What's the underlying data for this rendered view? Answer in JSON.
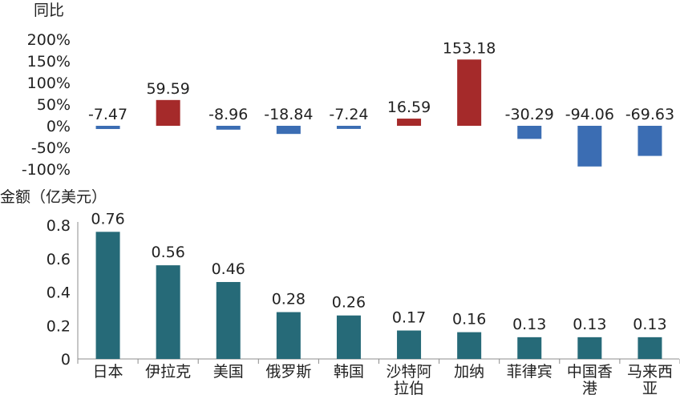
{
  "colors": {
    "positive": "#A52A2A",
    "negative": "#3B6DB3",
    "amount": "#266A78",
    "axis": "#8C8C8C",
    "text": "#222222"
  },
  "chart_data": [
    {
      "type": "bar",
      "title": "同比",
      "categories": [
        "日本",
        "伊拉克",
        "美国",
        "俄罗斯",
        "韩国",
        "沙特阿拉伯",
        "加纳",
        "菲律宾",
        "中国香港",
        "马来西亚"
      ],
      "values": [
        -7.47,
        59.59,
        -8.96,
        -18.84,
        -7.24,
        16.59,
        153.18,
        -30.29,
        -94.06,
        -69.63
      ],
      "value_labels": [
        "-7.47",
        "59.59",
        "-8.96",
        "-18.84",
        "-7.24",
        "16.59",
        "153.18",
        "-30.29",
        "-94.06",
        "-69.63"
      ],
      "ylim": [
        -100,
        200
      ],
      "yticks": [
        200,
        150,
        100,
        50,
        0,
        -50,
        -100
      ],
      "ytick_labels": [
        "200%",
        "150%",
        "100%",
        "50%",
        "0%",
        "-50%",
        "-100%"
      ],
      "grid": false
    },
    {
      "type": "bar",
      "title": "金额（亿美元）",
      "categories": [
        "日本",
        "伊拉克",
        "美国",
        "俄罗斯",
        "韩国",
        "沙特阿拉伯",
        "加纳",
        "菲律宾",
        "中国香港",
        "马来西亚"
      ],
      "category_lines": [
        [
          "日本"
        ],
        [
          "伊拉克"
        ],
        [
          "美国"
        ],
        [
          "俄罗斯"
        ],
        [
          "韩国"
        ],
        [
          "沙特阿",
          "拉伯"
        ],
        [
          "加纳"
        ],
        [
          "菲律宾"
        ],
        [
          "中国香",
          "港"
        ],
        [
          "马来西",
          "亚"
        ]
      ],
      "values": [
        0.76,
        0.56,
        0.46,
        0.28,
        0.26,
        0.17,
        0.16,
        0.13,
        0.13,
        0.13
      ],
      "value_labels": [
        "0.76",
        "0.56",
        "0.46",
        "0.28",
        "0.26",
        "0.17",
        "0.16",
        "0.13",
        "0.13",
        "0.13"
      ],
      "ylim": [
        0,
        0.8
      ],
      "yticks": [
        0.8,
        0.6,
        0.4,
        0.2,
        0
      ],
      "ytick_labels": [
        "0.8",
        "0.6",
        "0.4",
        "0.2",
        "0"
      ],
      "grid": false
    }
  ]
}
